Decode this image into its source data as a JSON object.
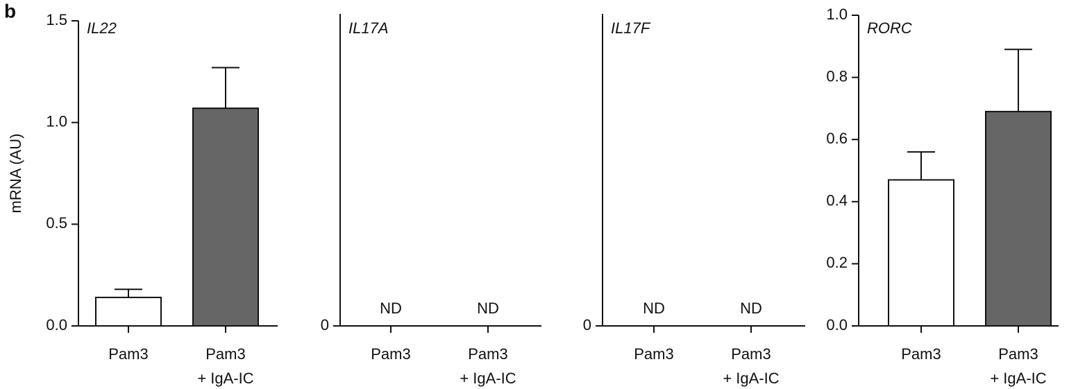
{
  "panel_label": "b",
  "chart_data": [
    {
      "type": "bar",
      "title": "IL22",
      "ylabel": "mRNA (AU)",
      "categories": [
        "Pam3",
        "Pam3\n+ IgA-IC"
      ],
      "values": [
        0.14,
        1.07
      ],
      "errors": [
        0.04,
        0.2
      ],
      "colors": [
        "#ffffff",
        "#666666"
      ],
      "ylim": [
        0,
        1.5
      ],
      "yticks": [
        {
          "value": 0,
          "label": "0.0"
        },
        0.5,
        {
          "value": 1,
          "label": "1.0"
        },
        1.5
      ]
    },
    {
      "type": "bar",
      "title": "IL17A",
      "categories": [
        "Pam3",
        "Pam3\n+ IgA-IC"
      ],
      "values": [
        null,
        null
      ],
      "value_labels": [
        "ND",
        "ND"
      ],
      "yticks": [
        0
      ]
    },
    {
      "type": "bar",
      "title": "IL17F",
      "categories": [
        "Pam3",
        "Pam3\n+ IgA-IC"
      ],
      "values": [
        null,
        null
      ],
      "value_labels": [
        "ND",
        "ND"
      ],
      "yticks": [
        0
      ]
    },
    {
      "type": "bar",
      "title": "RORC",
      "categories": [
        "Pam3",
        "Pam3\n+ IgA-IC"
      ],
      "values": [
        0.47,
        0.69
      ],
      "errors": [
        0.09,
        0.2
      ],
      "colors": [
        "#ffffff",
        "#666666"
      ],
      "ylim": [
        0,
        1
      ],
      "yticks": [
        {
          "value": 0,
          "label": "0.0"
        },
        0.2,
        0.4,
        0.6,
        0.8,
        {
          "value": 1,
          "label": "1.0"
        }
      ]
    }
  ]
}
